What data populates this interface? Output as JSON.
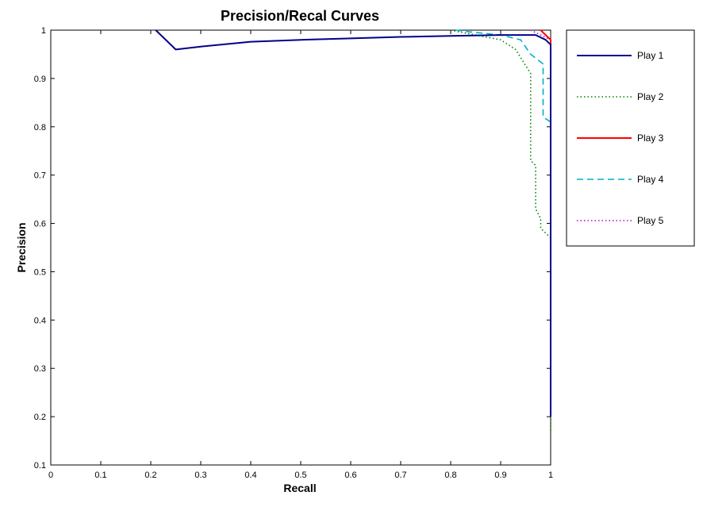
{
  "chart_data": {
    "type": "line",
    "title": "Precision/Recal Curves",
    "xlabel": "Recall",
    "ylabel": "Precision",
    "xlim": [
      0,
      1
    ],
    "ylim": [
      0.1,
      1
    ],
    "xticks": [
      "0",
      "0.1",
      "0.2",
      "0.3",
      "0.4",
      "0.5",
      "0.6",
      "0.7",
      "0.8",
      "0.9",
      "1"
    ],
    "yticks": [
      "0.1",
      "0.2",
      "0.3",
      "0.4",
      "0.5",
      "0.6",
      "0.7",
      "0.8",
      "0.9",
      "1"
    ],
    "grid": false,
    "legend_position": "outside right, top",
    "series": [
      {
        "name": "Play 1",
        "color": "#00008b",
        "style": "solid",
        "points": [
          [
            0.21,
            1.0
          ],
          [
            0.25,
            0.96
          ],
          [
            0.3,
            0.966
          ],
          [
            0.4,
            0.976
          ],
          [
            0.5,
            0.98
          ],
          [
            0.6,
            0.983
          ],
          [
            0.7,
            0.986
          ],
          [
            0.8,
            0.988
          ],
          [
            0.9,
            0.99
          ],
          [
            0.97,
            0.99
          ],
          [
            0.99,
            0.98
          ],
          [
            1.0,
            0.97
          ],
          [
            1.0,
            0.2
          ]
        ]
      },
      {
        "name": "Play 2",
        "color": "#008000",
        "style": "dotted",
        "points": [
          [
            0.8,
            1.0
          ],
          [
            0.85,
            0.99
          ],
          [
            0.9,
            0.98
          ],
          [
            0.93,
            0.96
          ],
          [
            0.96,
            0.91
          ],
          [
            0.96,
            0.73
          ],
          [
            0.97,
            0.72
          ],
          [
            0.97,
            0.63
          ],
          [
            0.98,
            0.61
          ],
          [
            0.98,
            0.59
          ],
          [
            0.99,
            0.58
          ],
          [
            1.0,
            0.57
          ],
          [
            1.0,
            0.17
          ]
        ]
      },
      {
        "name": "Play 3",
        "color": "#ff0000",
        "style": "solid",
        "points": [
          [
            0.98,
            1.0
          ],
          [
            0.99,
            0.99
          ],
          [
            1.0,
            0.98
          ],
          [
            1.0,
            0.26
          ]
        ]
      },
      {
        "name": "Play 4",
        "color": "#00b0c8",
        "style": "dashed",
        "points": [
          [
            0.81,
            1.0
          ],
          [
            0.85,
            0.995
          ],
          [
            0.9,
            0.99
          ],
          [
            0.94,
            0.98
          ],
          [
            0.96,
            0.95
          ],
          [
            0.985,
            0.93
          ],
          [
            0.985,
            0.82
          ],
          [
            1.0,
            0.81
          ],
          [
            1.0,
            0.27
          ]
        ]
      },
      {
        "name": "Play 5",
        "color": "#c000c0",
        "style": "dotted",
        "points": [
          [
            0.96,
            1.0
          ],
          [
            0.98,
            0.99
          ],
          [
            1.0,
            0.98
          ],
          [
            1.0,
            0.25
          ]
        ]
      }
    ]
  }
}
